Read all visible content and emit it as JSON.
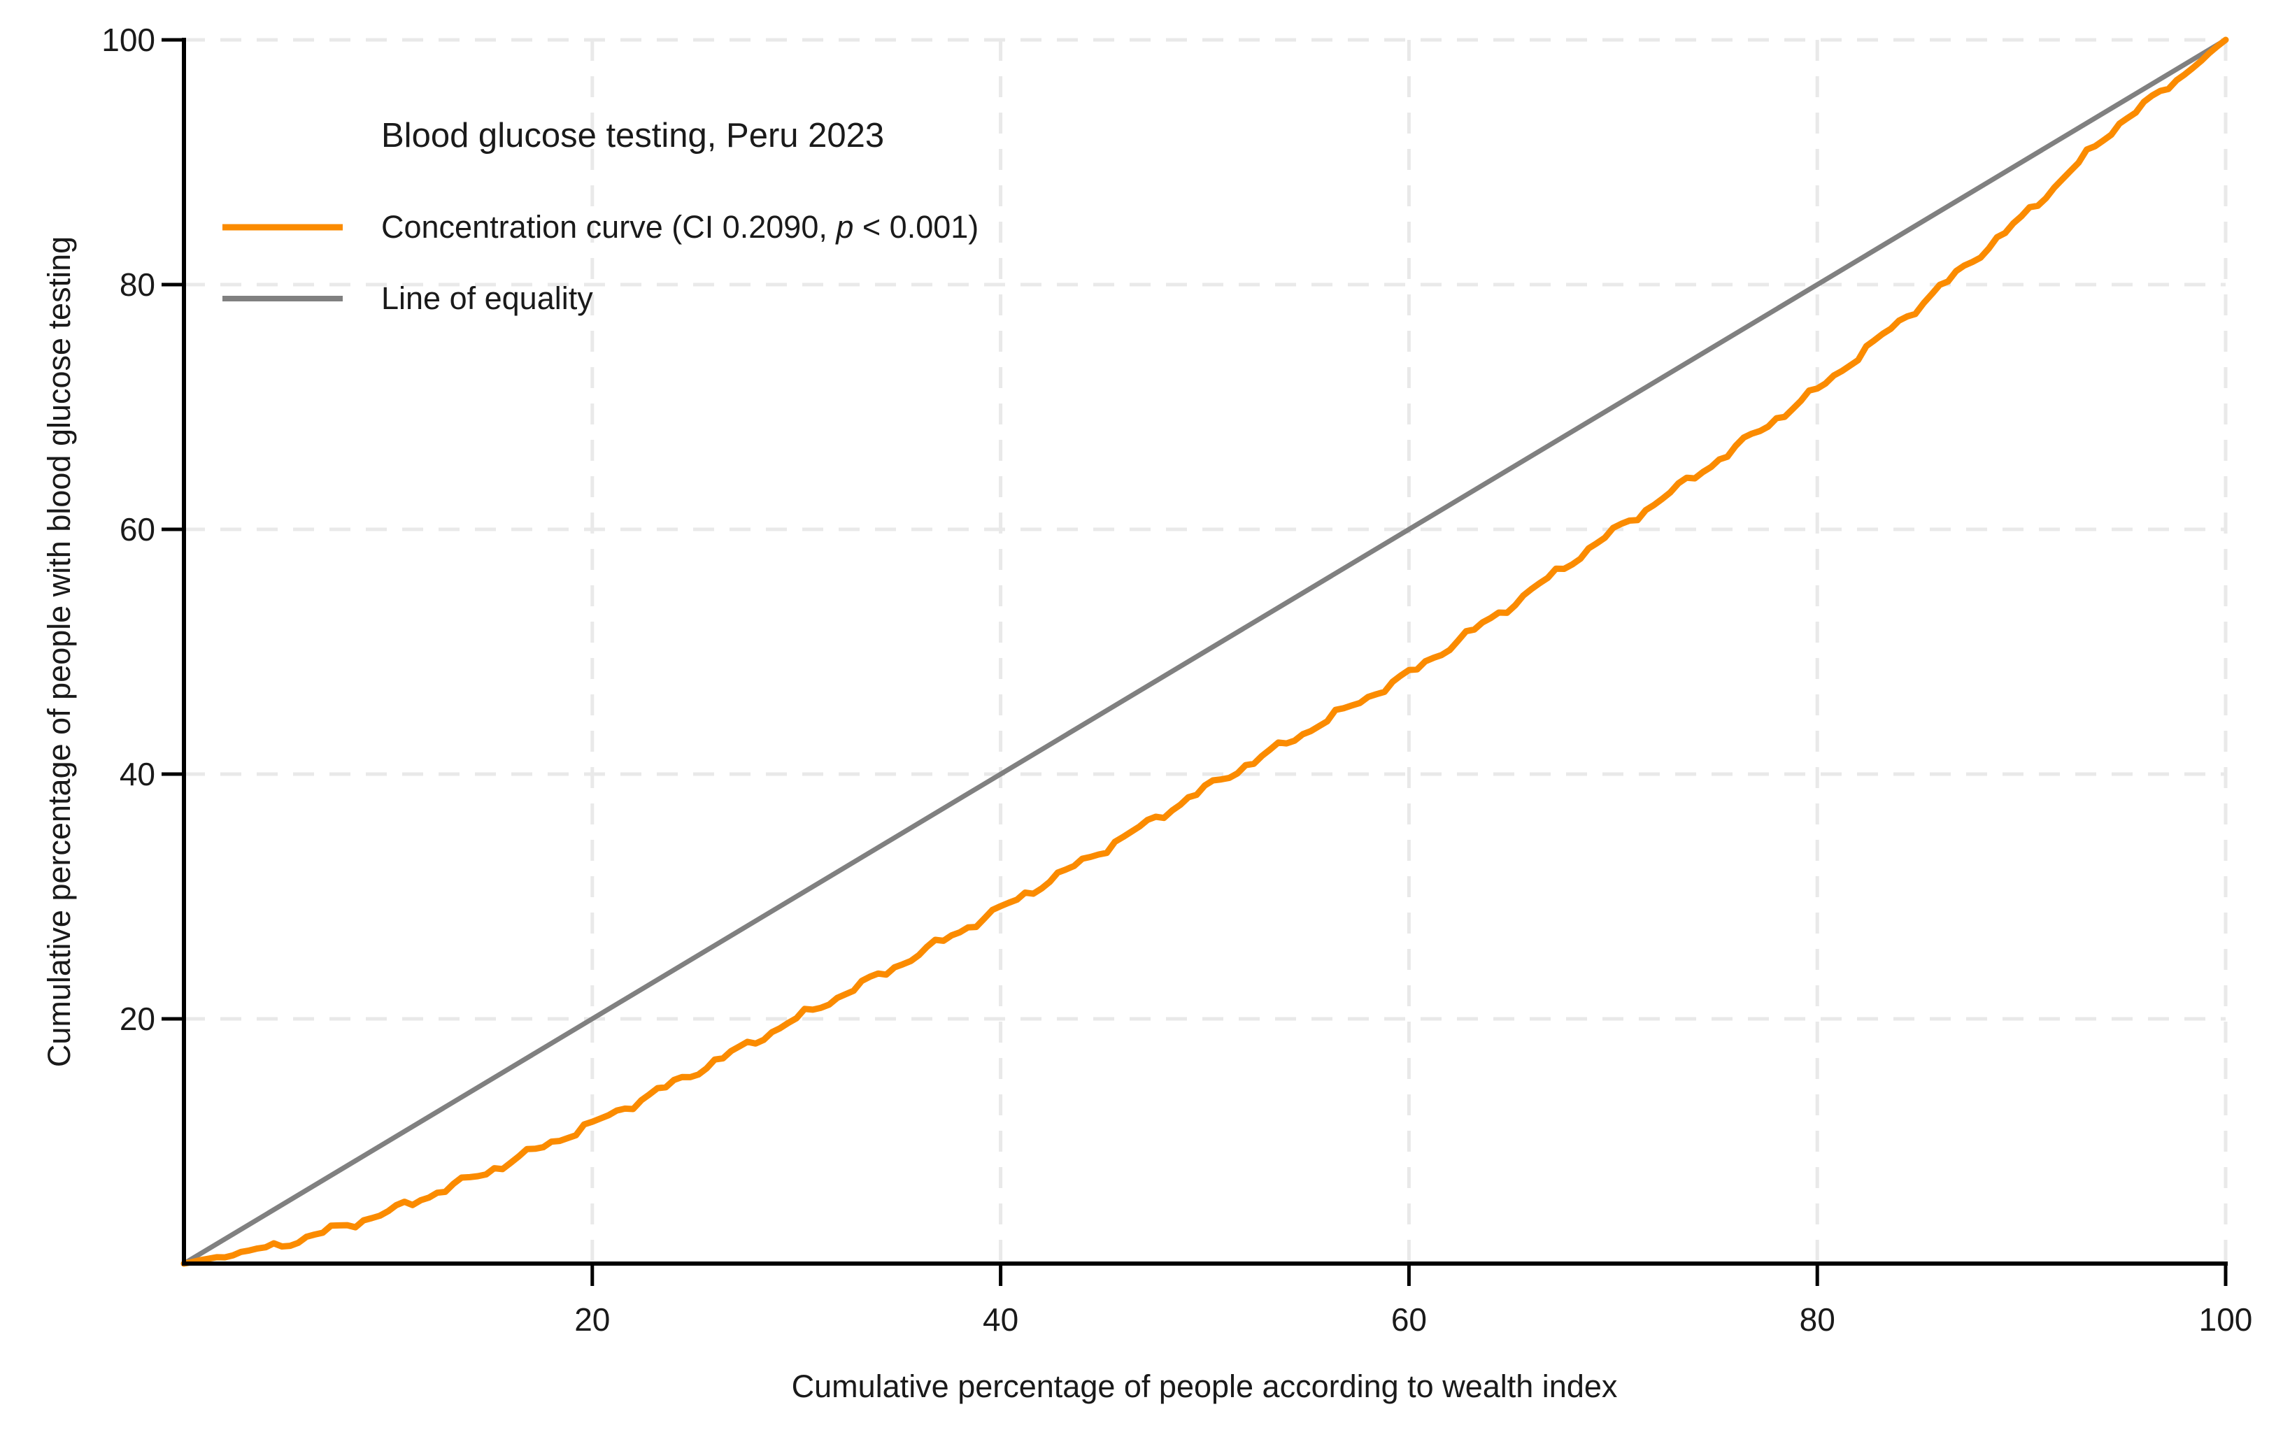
{
  "colors": {
    "curve": "#fb8b00",
    "equality_line": "#808080",
    "grid": "#e9e9e9",
    "axis": "#000000",
    "text": "#1a1a1a",
    "background": "#ffffff"
  },
  "title": "Blood glucose testing, Peru 2023",
  "legend": {
    "row1_prefix": "Concentration curve  (CI 0.2090, ",
    "row1_italic": "p",
    "row1_suffix": " < 0.001)",
    "row2": "Line of equality"
  },
  "chart_data": {
    "type": "line",
    "title": "Blood glucose testing, Peru 2023",
    "xlabel": "Cumulative percentage of people according to wealth index",
    "ylabel": "Cumulative percentage of people with blood glucose testing",
    "xlim": [
      0,
      100
    ],
    "ylim": [
      0,
      100
    ],
    "x_ticks": [
      20,
      40,
      60,
      80,
      100
    ],
    "y_ticks": [
      20,
      40,
      60,
      80,
      100
    ],
    "grid": "dashed",
    "legend_position": "upper-left-inside",
    "annotations": [
      "CI 0.2090",
      "p < 0.001"
    ],
    "series": [
      {
        "name": "Concentration curve  (CI 0.2090, p < 0.001)",
        "color": "#fb8b00",
        "style": "solid",
        "x": [
          0,
          5,
          10,
          15,
          20,
          25,
          30,
          35,
          40,
          45,
          50,
          55,
          60,
          65,
          70,
          75,
          80,
          85,
          90,
          95,
          97,
          99,
          100
        ],
        "y": [
          0,
          1.6,
          4.2,
          7.6,
          11.4,
          15.6,
          20.0,
          24.4,
          29.0,
          33.8,
          38.8,
          43.5,
          48.2,
          53.8,
          59.8,
          65.5,
          71.4,
          78.3,
          85.4,
          93.5,
          95.9,
          98.6,
          100
        ]
      },
      {
        "name": "Line of equality",
        "color": "#808080",
        "style": "solid",
        "x": [
          0,
          100
        ],
        "y": [
          0,
          100
        ]
      }
    ]
  }
}
